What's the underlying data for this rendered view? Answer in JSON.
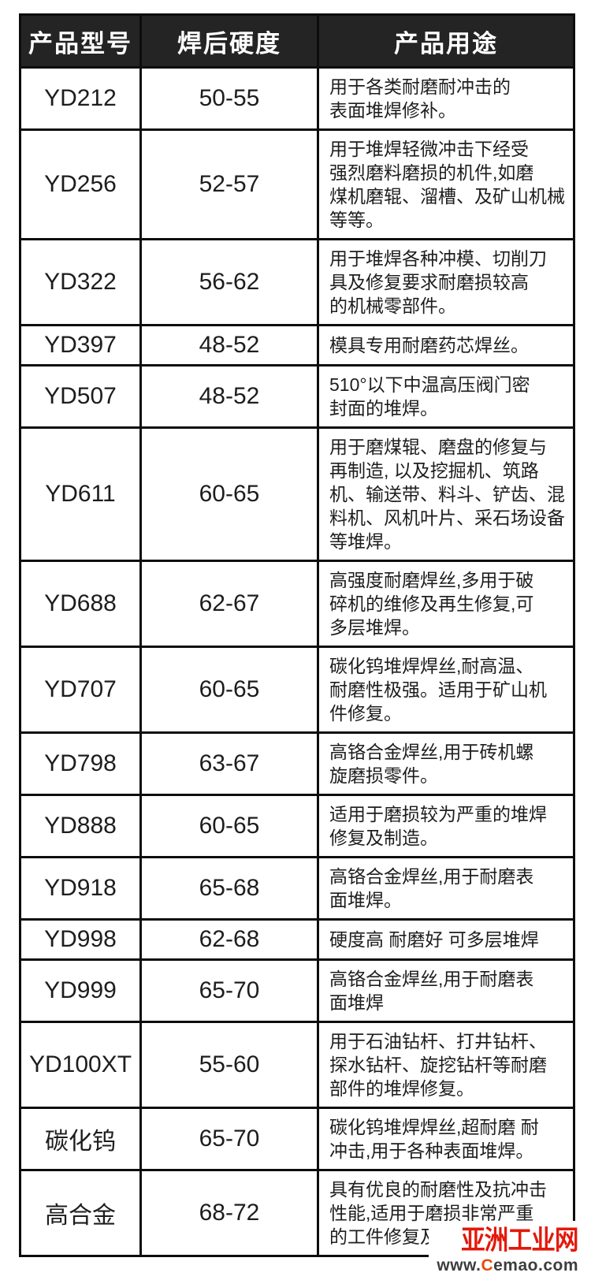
{
  "colors": {
    "header_bg": "#242424",
    "header_text": "#ffffff",
    "border": "#0d0d0d",
    "body_text": "#1d1d1d",
    "logo_red": "#e2190b",
    "url_gray": "#3d3d3d",
    "url_c_red": "#e84b0f"
  },
  "table": {
    "headers": [
      "产品型号",
      "焊后硬度",
      "产品用途"
    ],
    "rows": [
      {
        "model": "YD212",
        "hardness": "50-55",
        "usage": "用于各类耐磨耐冲击的\n表面堆焊修补。"
      },
      {
        "model": "YD256",
        "hardness": "52-57",
        "usage": "用于堆焊轻微冲击下经受\n强烈磨料磨损的机件,如磨\n煤机磨辊、溜槽、及矿山机械\n等等。"
      },
      {
        "model": "YD322",
        "hardness": "56-62",
        "usage": "用于堆焊各种冲模、切削刀\n具及修复要求耐磨损较高\n的机械零部件。"
      },
      {
        "model": "YD397",
        "hardness": "48-52",
        "usage": "模具专用耐磨药芯焊丝。"
      },
      {
        "model": "YD507",
        "hardness": "48-52",
        "usage": "510°以下中温高压阀门密\n封面的堆焊。"
      },
      {
        "model": "YD611",
        "hardness": "60-65",
        "usage": "用于磨煤辊、磨盘的修复与\n再制造, 以及挖掘机、筑路\n机、输送带、料斗、铲齿、混\n料机、风机叶片、采石场设备\n等堆焊。"
      },
      {
        "model": "YD688",
        "hardness": "62-67",
        "usage": "高强度耐磨焊丝,多用于破\n碎机的维修及再生修复,可\n多层堆焊。"
      },
      {
        "model": "YD707",
        "hardness": "60-65",
        "usage": "碳化钨堆焊焊丝,耐高温、\n耐磨性极强。适用于矿山机\n件修复。"
      },
      {
        "model": "YD798",
        "hardness": "63-67",
        "usage": "高铬合金焊丝,用于砖机螺\n旋磨损零件。"
      },
      {
        "model": "YD888",
        "hardness": "60-65",
        "usage": "适用于磨损较为严重的堆焊\n修复及制造。"
      },
      {
        "model": "YD918",
        "hardness": "65-68",
        "usage": "高铬合金焊丝,用于耐磨表\n面堆焊。"
      },
      {
        "model": "YD998",
        "hardness": "62-68",
        "usage": "硬度高 耐磨好 可多层堆焊"
      },
      {
        "model": "YD999",
        "hardness": "65-70",
        "usage": "高铬合金焊丝,用于耐磨表\n面堆焊"
      },
      {
        "model": "YD100XT",
        "hardness": "55-60",
        "usage": "用于石油钻杆、打井钻杆、\n探水钻杆、旋挖钻杆等耐磨\n部件的堆焊修复。"
      },
      {
        "model": "碳化钨",
        "hardness": "65-70",
        "usage": "碳化钨堆焊焊丝,超耐磨 耐\n冲击,用于各种表面堆焊。"
      },
      {
        "model": "高合金",
        "hardness": "68-72",
        "usage": "具有优良的耐磨性及抗冲击\n性能,适用于磨损非常严重\n的工件修复及制造。"
      }
    ]
  },
  "watermark": {
    "logo_text": "亚洲工业网",
    "url_prefix": "www.",
    "url_c": "C",
    "url_rest": "emao.com"
  }
}
